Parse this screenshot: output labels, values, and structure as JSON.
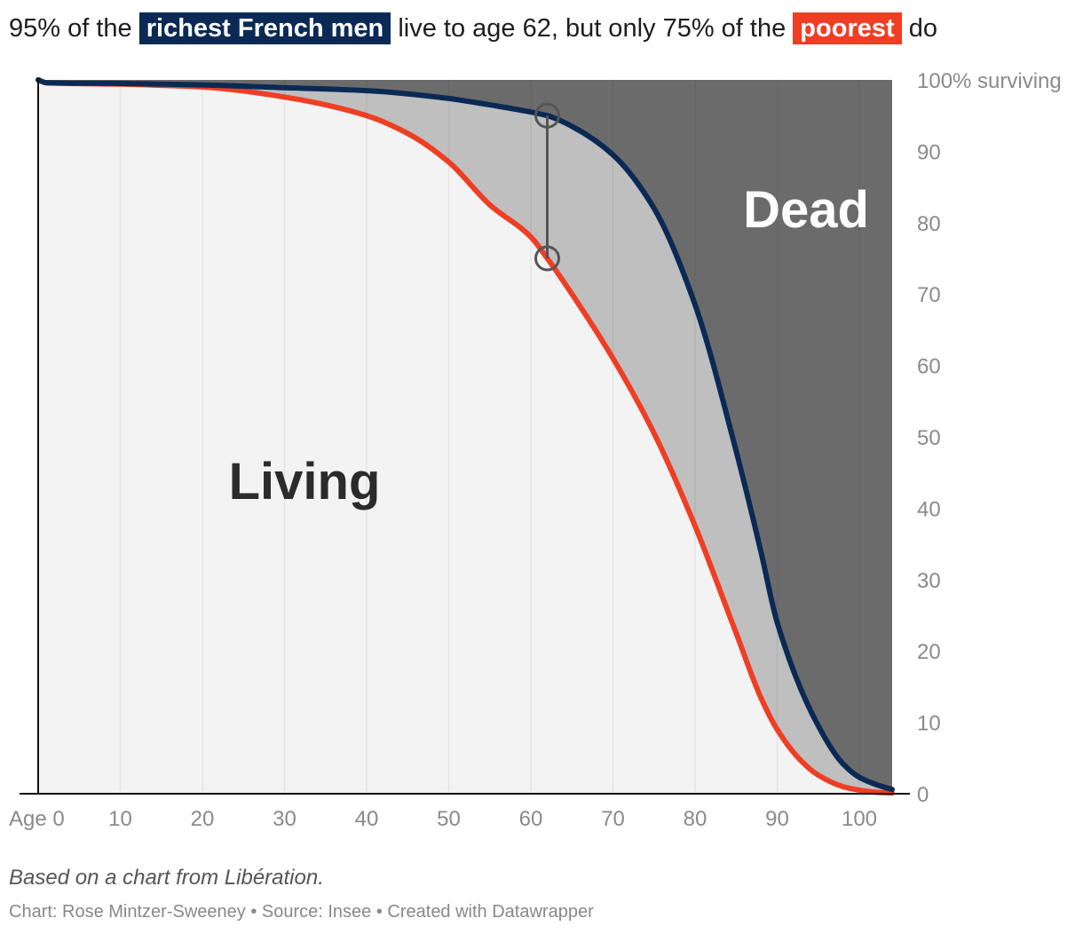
{
  "headline": {
    "prefix": "95% of the",
    "rich_label": "richest French men",
    "middle": "live to age 62, but only 75% of the",
    "poor_label": "poorest",
    "suffix": "do"
  },
  "colors": {
    "rich": "#0a2a55",
    "poor": "#ef3e24",
    "living_area": "#f3f3f3",
    "gap_area": "#bfbfbf",
    "dead_area": "#6b6b6b"
  },
  "chart_data": {
    "type": "area",
    "x_ticks": [
      "Age 0",
      "10",
      "20",
      "30",
      "40",
      "50",
      "60",
      "70",
      "80",
      "90",
      "100"
    ],
    "y_ticks": [
      "100% surviving",
      "90",
      "80",
      "70",
      "60",
      "50",
      "40",
      "30",
      "20",
      "10",
      "0"
    ],
    "xlim": [
      0,
      104
    ],
    "ylim": [
      0,
      100
    ],
    "grid": true,
    "area_labels": {
      "living": "Living",
      "dead": "Dead"
    },
    "series": [
      {
        "key": "rich",
        "x": [
          0,
          1,
          10,
          20,
          30,
          40,
          50,
          55,
          60,
          62,
          65,
          70,
          75,
          80,
          85,
          88,
          90,
          95,
          98,
          100,
          102,
          104
        ],
        "values": [
          100,
          99.6,
          99.5,
          99.3,
          98.9,
          98.5,
          97.4,
          96.5,
          95.5,
          95,
          93.5,
          89.5,
          82,
          68.5,
          48,
          34,
          24,
          9.5,
          4.2,
          2.3,
          1.3,
          0.6
        ]
      },
      {
        "key": "poor",
        "x": [
          0,
          1,
          10,
          20,
          30,
          40,
          45,
          50,
          55,
          60,
          62,
          65,
          70,
          75,
          80,
          85,
          88,
          90,
          93,
          95,
          98,
          100,
          102,
          104
        ],
        "values": [
          100,
          99.6,
          99.4,
          99,
          97.6,
          95,
          92.5,
          88.5,
          82.5,
          78,
          75,
          70,
          61,
          50.5,
          37.5,
          22.5,
          13.5,
          9,
          4.5,
          2.6,
          1,
          0.5,
          0.2,
          0.1
        ]
      }
    ],
    "annotation": {
      "age": 62,
      "rich_value": 95,
      "poor_value": 75
    }
  },
  "footer": {
    "note": "Based on a chart from Libération.",
    "credit": "Chart: Rose Mintzer-Sweeney • Source: Insee • Created with Datawrapper"
  }
}
